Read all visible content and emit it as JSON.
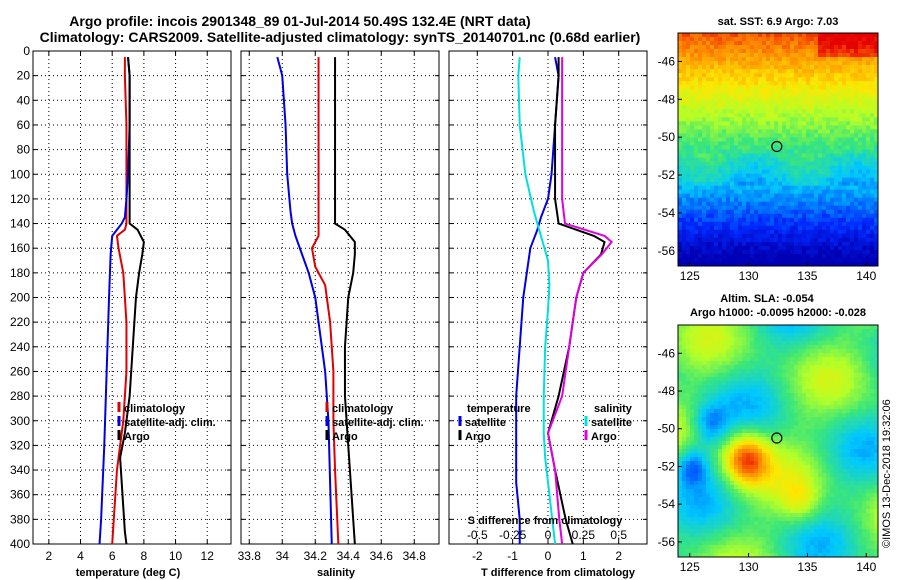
{
  "title_line1": "Argo profile: incois 2901348_89 01-Jul-2014 50.49S 132.4E (NRT data)",
  "title_line2": "Climatology: CARS2009. Satellite-adjusted climatology: synTS_20140701.nc (0.68d earlier)",
  "watermark": "©IMOS 13-Dec-2018 19:32:06",
  "colors": {
    "climatology": "#e00000",
    "satellite": "#0000e0",
    "argo": "#000000",
    "sat_salinity": "#00e0e0",
    "argo_salinity": "#e000e0"
  },
  "chart_data": [
    {
      "type": "line",
      "xlabel": "temperature (deg C)",
      "xlim": [
        1,
        13.5
      ],
      "ylim": [
        400,
        0
      ],
      "xticks": [
        2,
        4,
        6,
        8,
        10,
        12
      ],
      "xtick_labels": [
        "2",
        "4",
        "6",
        "8",
        "10",
        "12"
      ],
      "yticks": [
        0,
        20,
        40,
        60,
        80,
        100,
        120,
        140,
        160,
        180,
        200,
        220,
        240,
        260,
        280,
        300,
        320,
        340,
        360,
        380,
        400
      ],
      "ytick_labels": [
        "0",
        "20",
        "40",
        "60",
        "80",
        "100",
        "120",
        "140",
        "160",
        "180",
        "200",
        "220",
        "240",
        "260",
        "280",
        "300",
        "320",
        "340",
        "360",
        "380",
        "400"
      ],
      "legend": [
        "climatology",
        "satellite-adj. clim.",
        "Argo"
      ],
      "series": [
        {
          "name": "climatology",
          "color": "#e00000",
          "x": [
            6.8,
            6.8,
            6.9,
            6.9,
            6.9,
            6.9,
            6.9,
            6.8,
            6.3,
            6.4,
            6.7,
            6.9,
            6.9,
            6.8,
            6.7,
            6.5,
            6.3,
            6.2,
            6.1,
            6.0
          ],
          "y": [
            5,
            20,
            60,
            100,
            120,
            130,
            140,
            145,
            150,
            160,
            180,
            220,
            260,
            280,
            300,
            320,
            340,
            360,
            380,
            400
          ]
        },
        {
          "name": "satellite-adj. clim.",
          "color": "#0000e0",
          "x": [
            7.0,
            7.1,
            7.1,
            7.0,
            6.9,
            6.8,
            6.6,
            6.3,
            6.0,
            5.9,
            5.8,
            5.7,
            5.6,
            5.5,
            5.4,
            5.3,
            5.2
          ],
          "y": [
            5,
            20,
            60,
            100,
            120,
            135,
            140,
            145,
            150,
            165,
            200,
            240,
            280,
            320,
            350,
            380,
            400
          ]
        },
        {
          "name": "Argo",
          "color": "#000000",
          "x": [
            7.0,
            7.1,
            7.1,
            7.1,
            7.1,
            7.1,
            7.6,
            8.0,
            7.9,
            7.7,
            7.5,
            7.3,
            7.1,
            6.8,
            6.5,
            6.6,
            6.7,
            6.8,
            6.9
          ],
          "y": [
            5,
            20,
            60,
            100,
            120,
            140,
            145,
            155,
            165,
            180,
            200,
            240,
            280,
            310,
            330,
            350,
            370,
            390,
            400
          ]
        }
      ]
    },
    {
      "type": "line",
      "xlabel": "salinity",
      "xlim": [
        33.75,
        34.95
      ],
      "ylim": [
        400,
        0
      ],
      "xticks": [
        33.8,
        34.0,
        34.2,
        34.4,
        34.6,
        34.8
      ],
      "xtick_labels": [
        "33.8",
        "34",
        "34.2",
        "34.4",
        "34.6",
        "34.8"
      ],
      "legend": [
        "climatology",
        "satellite-adj. clim.",
        "Argo"
      ],
      "series": [
        {
          "name": "climatology",
          "color": "#e00000",
          "x": [
            34.22,
            34.22,
            34.22,
            34.22,
            34.22,
            34.22,
            34.18,
            34.2,
            34.26,
            34.29,
            34.31,
            34.31,
            34.32,
            34.33,
            34.34
          ],
          "y": [
            5,
            20,
            60,
            100,
            140,
            150,
            160,
            175,
            190,
            220,
            260,
            300,
            340,
            370,
            400
          ]
        },
        {
          "name": "satellite-adj. clim.",
          "color": "#0000e0",
          "x": [
            33.97,
            34.0,
            34.02,
            34.03,
            34.05,
            34.06,
            34.08,
            34.12,
            34.16,
            34.2,
            34.23,
            34.26,
            34.28,
            34.29,
            34.3
          ],
          "y": [
            5,
            20,
            60,
            100,
            130,
            140,
            150,
            165,
            180,
            200,
            230,
            260,
            300,
            350,
            400
          ]
        },
        {
          "name": "Argo",
          "color": "#000000",
          "x": [
            34.32,
            34.32,
            34.32,
            34.32,
            34.32,
            34.32,
            34.38,
            34.44,
            34.44,
            34.43,
            34.4,
            34.38,
            34.38,
            34.4,
            34.42,
            34.44
          ],
          "y": [
            5,
            20,
            60,
            100,
            120,
            140,
            145,
            155,
            165,
            180,
            200,
            240,
            280,
            320,
            360,
            400
          ]
        }
      ]
    },
    {
      "type": "line",
      "xlabel": "T difference from climatology",
      "xlim": [
        -2.8,
        2.8
      ],
      "ylim": [
        400,
        0
      ],
      "xticks": [
        -2,
        -1,
        0,
        1,
        2
      ],
      "xtick_labels": [
        "-2",
        "-1",
        "0",
        "1",
        "2"
      ],
      "s_axis_label": "S difference from climatology",
      "s_xticks": [
        -0.5,
        -0.25,
        0,
        0.25,
        0.5
      ],
      "s_xtick_labels": [
        "-0.5",
        "-0.25",
        "0",
        "0.25",
        "0.5"
      ],
      "legend_temperature": [
        "temperature",
        "satellite",
        "Argo"
      ],
      "legend_salinity": [
        "salinity",
        "satellite",
        "Argo"
      ],
      "series": [
        {
          "name": "temperature satellite",
          "color": "#0000e0",
          "x": [
            0.2,
            0.3,
            0.2,
            0.1,
            0.0,
            -0.2,
            -0.3,
            -0.5,
            -0.6,
            -0.7,
            -0.8,
            -0.9,
            -0.9,
            -0.9,
            -0.8,
            -0.8
          ],
          "y": [
            5,
            20,
            60,
            100,
            120,
            135,
            145,
            160,
            180,
            200,
            240,
            280,
            320,
            350,
            380,
            400
          ]
        },
        {
          "name": "temperature Argo",
          "color": "#000000",
          "x": [
            0.3,
            0.3,
            0.2,
            0.2,
            0.2,
            0.3,
            1.3,
            1.6,
            1.5,
            1.0,
            0.8,
            0.6,
            0.3,
            0.0,
            0.2,
            0.5,
            0.7
          ],
          "y": [
            5,
            20,
            60,
            100,
            120,
            140,
            150,
            155,
            165,
            180,
            200,
            240,
            280,
            310,
            340,
            380,
            400
          ]
        }
      ]
    }
  ],
  "maps": [
    {
      "title": "sat. SST: 6.9 Argo: 7.03",
      "xticks": [
        "125",
        "130",
        "135",
        "140"
      ],
      "yticks": [
        "-46",
        "-48",
        "-50",
        "-52",
        "-54",
        "-56"
      ],
      "lon_range": [
        124,
        141
      ],
      "lat_range": [
        -56.8,
        -44.5
      ],
      "marker_lon": 132.4,
      "marker_lat": -50.49
    },
    {
      "title_line1": "Altim. SLA: -0.054",
      "title_line2": "Argo h1000: -0.0095 h2000: -0.028",
      "xticks": [
        "125",
        "130",
        "135",
        "140"
      ],
      "yticks": [
        "-46",
        "-48",
        "-50",
        "-52",
        "-54",
        "-56"
      ],
      "lon_range": [
        124,
        141
      ],
      "lat_range": [
        -56.8,
        -44.5
      ],
      "marker_lon": 132.4,
      "marker_lat": -50.49
    }
  ]
}
